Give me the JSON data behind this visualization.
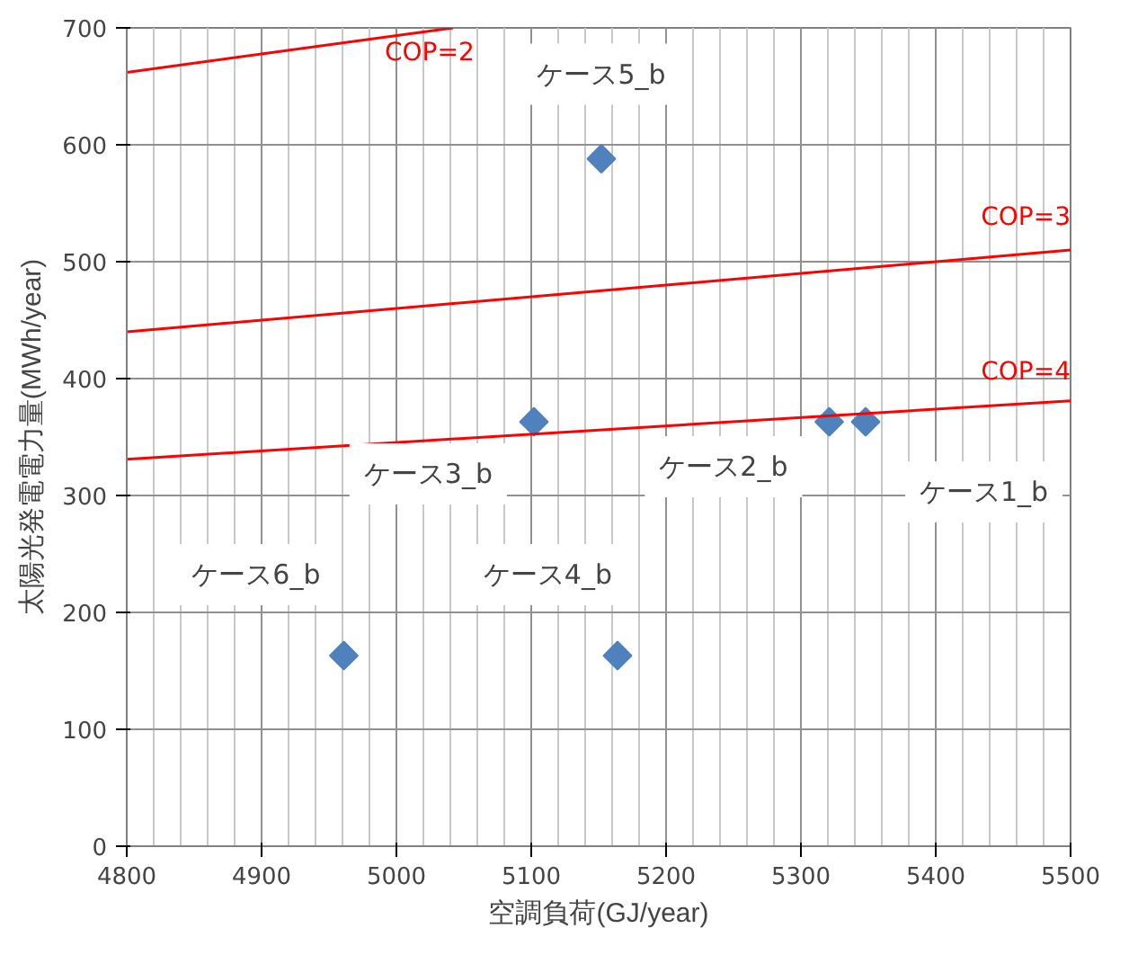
{
  "chart_data": {
    "type": "scatter",
    "xlabel": "空調負荷(GJ/year)",
    "ylabel": "太陽光発電電力量(MWh/year)",
    "xlim": [
      4800,
      5500
    ],
    "xticks": [
      4800,
      4900,
      5000,
      5100,
      5200,
      5300,
      5400,
      5500
    ],
    "ylim": [
      0,
      700
    ],
    "yticks": [
      0,
      100,
      200,
      300,
      400,
      500,
      600,
      700
    ],
    "grid": true,
    "series": [
      {
        "marker": "diamond",
        "color": "#4f81bd",
        "x": [
          5348,
          5321,
          5102,
          5164,
          5152,
          4961
        ],
        "values": [
          363,
          363,
          363,
          163,
          588,
          163
        ]
      },
      {
        "type": "line",
        "marker": "none",
        "name": "COP=2",
        "color": "#ff0000",
        "x": [
          4800,
          5042
        ],
        "values": [
          662,
          700
        ]
      },
      {
        "type": "line",
        "marker": "none",
        "name": "COP=3",
        "color": "#ff0000",
        "x": [
          4800,
          5500
        ],
        "values": [
          440,
          510
        ]
      },
      {
        "type": "line",
        "marker": "none",
        "name": "COP=4",
        "color": "#ff0000",
        "x": [
          4800,
          5500
        ],
        "values": [
          331,
          381
        ]
      }
    ],
    "annotations": [
      {
        "text": "ケース1_b",
        "x": 5348,
        "y": 363
      },
      {
        "text": "ケース2_b",
        "x": 5321,
        "y": 363
      },
      {
        "text": "ケース3_b",
        "x": 5102,
        "y": 363
      },
      {
        "text": "ケース4_b",
        "x": 5164,
        "y": 163
      },
      {
        "text": "ケース5_b",
        "x": 5152,
        "y": 588
      },
      {
        "text": "ケース6_b",
        "x": 4961,
        "y": 163
      }
    ]
  }
}
